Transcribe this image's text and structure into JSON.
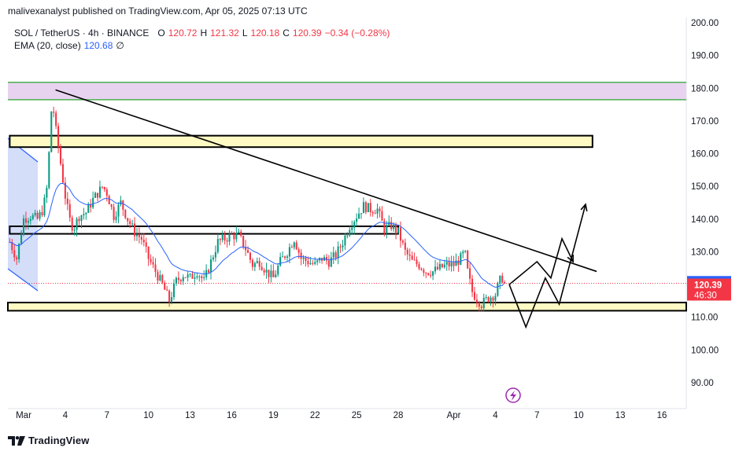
{
  "header": {
    "published_by": "malivexanalyst published on TradingView.com, Apr 05, 2025 07:13 UTC"
  },
  "legend": {
    "symbol": "SOL / TetherUS · 4h · BINANCE",
    "open_label": "O",
    "open": "120.72",
    "high_label": "H",
    "high": "121.32",
    "low_label": "L",
    "low": "120.18",
    "close_label": "C",
    "close": "120.39",
    "change": "−0.34 (−0.28%)",
    "ema_label": "EMA (20, close)",
    "ema_value": "120.68",
    "ema_suffix": "∅"
  },
  "price_badges": {
    "ema": "120.68",
    "price": "120.39",
    "countdown": "46:30"
  },
  "colors": {
    "up": "#089981",
    "down": "#f23645",
    "ema": "#2962ff",
    "resistance_zone_fill": "#e7d3ef",
    "resistance_zone_border": "#4caf50",
    "support_box_fill": "#fff9c4",
    "left_channel_fill": "#c9d6f7",
    "left_channel_border": "#2962ff",
    "price_line": "#f23645"
  },
  "brand": {
    "name": "TradingView",
    "logo_icon": "tradingview-logo-icon"
  },
  "chart_data": {
    "type": "candlestick",
    "symbol": "SOL / TetherUS",
    "timeframe": "4h",
    "exchange": "BINANCE",
    "y_axis": {
      "ticks": [
        "200.00",
        "190.00",
        "180.00",
        "170.00",
        "160.00",
        "150.00",
        "140.00",
        "130.00",
        "120.00",
        "110.00",
        "100.00",
        "90.00"
      ],
      "ylim": [
        83.0,
        204.0
      ]
    },
    "x_axis": {
      "ticks": [
        {
          "label": "Mar",
          "day": 0
        },
        {
          "label": "4",
          "day": 3
        },
        {
          "label": "7",
          "day": 6
        },
        {
          "label": "10",
          "day": 9
        },
        {
          "label": "13",
          "day": 12
        },
        {
          "label": "16",
          "day": 15
        },
        {
          "label": "19",
          "day": 18
        },
        {
          "label": "22",
          "day": 21
        },
        {
          "label": "25",
          "day": 24
        },
        {
          "label": "28",
          "day": 27
        },
        {
          "label": "Apr",
          "day": 31
        },
        {
          "label": "4",
          "day": 34
        },
        {
          "label": "7",
          "day": 37
        },
        {
          "label": "10",
          "day": 40
        },
        {
          "label": "13",
          "day": 43
        },
        {
          "label": "16",
          "day": 46
        }
      ],
      "xlim": [
        -1.0,
        49.0
      ]
    },
    "close_series": [
      {
        "day": -1.0,
        "price": 133
      },
      {
        "day": -0.5,
        "price": 128
      },
      {
        "day": 0.0,
        "price": 140
      },
      {
        "day": 0.5,
        "price": 141
      },
      {
        "day": 1.0,
        "price": 140
      },
      {
        "day": 1.4,
        "price": 143
      },
      {
        "day": 1.7,
        "price": 150
      },
      {
        "day": 1.9,
        "price": 165
      },
      {
        "day": 2.05,
        "price": 177
      },
      {
        "day": 2.3,
        "price": 168
      },
      {
        "day": 2.7,
        "price": 156
      },
      {
        "day": 3.0,
        "price": 147
      },
      {
        "day": 3.3,
        "price": 140
      },
      {
        "day": 3.6,
        "price": 137
      },
      {
        "day": 4.0,
        "price": 141
      },
      {
        "day": 4.5,
        "price": 142
      },
      {
        "day": 5.0,
        "price": 146
      },
      {
        "day": 5.7,
        "price": 150
      },
      {
        "day": 6.0,
        "price": 148
      },
      {
        "day": 6.5,
        "price": 141
      },
      {
        "day": 7.0,
        "price": 145
      },
      {
        "day": 7.5,
        "price": 140
      },
      {
        "day": 8.0,
        "price": 136
      },
      {
        "day": 8.5,
        "price": 134
      },
      {
        "day": 9.0,
        "price": 128
      },
      {
        "day": 9.5,
        "price": 124
      },
      {
        "day": 10.0,
        "price": 120
      },
      {
        "day": 10.5,
        "price": 115
      },
      {
        "day": 11.0,
        "price": 121
      },
      {
        "day": 11.5,
        "price": 123
      },
      {
        "day": 12.0,
        "price": 122
      },
      {
        "day": 12.5,
        "price": 124
      },
      {
        "day": 13.0,
        "price": 121
      },
      {
        "day": 13.5,
        "price": 127
      },
      {
        "day": 14.0,
        "price": 133
      },
      {
        "day": 14.5,
        "price": 134
      },
      {
        "day": 15.0,
        "price": 135
      },
      {
        "day": 15.5,
        "price": 135
      },
      {
        "day": 16.0,
        "price": 131
      },
      {
        "day": 16.5,
        "price": 126
      },
      {
        "day": 17.0,
        "price": 127
      },
      {
        "day": 17.5,
        "price": 124
      },
      {
        "day": 18.0,
        "price": 122
      },
      {
        "day": 18.5,
        "price": 127
      },
      {
        "day": 19.0,
        "price": 130
      },
      {
        "day": 19.5,
        "price": 134
      },
      {
        "day": 20.0,
        "price": 128
      },
      {
        "day": 20.5,
        "price": 127
      },
      {
        "day": 21.0,
        "price": 126
      },
      {
        "day": 21.5,
        "price": 128
      },
      {
        "day": 22.0,
        "price": 127
      },
      {
        "day": 22.5,
        "price": 129
      },
      {
        "day": 23.0,
        "price": 133
      },
      {
        "day": 23.5,
        "price": 138
      },
      {
        "day": 24.0,
        "price": 141
      },
      {
        "day": 24.5,
        "price": 144
      },
      {
        "day": 25.0,
        "price": 143
      },
      {
        "day": 25.5,
        "price": 143
      },
      {
        "day": 26.0,
        "price": 137
      },
      {
        "day": 26.5,
        "price": 138
      },
      {
        "day": 27.0,
        "price": 136
      },
      {
        "day": 27.5,
        "price": 130
      },
      {
        "day": 28.0,
        "price": 127
      },
      {
        "day": 28.5,
        "price": 126
      },
      {
        "day": 29.0,
        "price": 124
      },
      {
        "day": 29.5,
        "price": 124
      },
      {
        "day": 30.0,
        "price": 125
      },
      {
        "day": 30.5,
        "price": 126
      },
      {
        "day": 31.0,
        "price": 126
      },
      {
        "day": 31.5,
        "price": 128
      },
      {
        "day": 31.8,
        "price": 130
      },
      {
        "day": 32.0,
        "price": 124
      },
      {
        "day": 32.3,
        "price": 118
      },
      {
        "day": 32.6,
        "price": 116
      },
      {
        "day": 33.0,
        "price": 114
      },
      {
        "day": 33.5,
        "price": 116
      },
      {
        "day": 34.0,
        "price": 117
      },
      {
        "day": 34.3,
        "price": 121
      },
      {
        "day": 34.5,
        "price": 122
      },
      {
        "day": 34.7,
        "price": 120.39
      }
    ],
    "ema": {
      "name": "EMA (20, close)",
      "last": 120.68
    },
    "last": {
      "open": 120.72,
      "high": 121.32,
      "low": 120.18,
      "close": 120.39,
      "change": -0.34,
      "change_pct": -0.28
    },
    "annotations": {
      "resistance_zone": {
        "from": 176.5,
        "to": 181.8
      },
      "supply_box": {
        "from": 162,
        "to": 165.5,
        "day_start": -1.0,
        "day_end": 41.0
      },
      "mid_boxes": [
        {
          "from": 135.5,
          "to": 137.8,
          "day_start": -1.0,
          "day_end": 27.0
        }
      ],
      "support_zone": {
        "from": 112,
        "to": 114.5
      },
      "trendline": {
        "start": {
          "day": 2.3,
          "price": 179.5
        },
        "end": {
          "day": 41.3,
          "price": 124
        }
      },
      "projection_paths": [
        [
          {
            "day": 35.0,
            "price": 120
          },
          {
            "day": 36.2,
            "price": 107
          },
          {
            "day": 37.6,
            "price": 122
          },
          {
            "day": 38.6,
            "price": 114
          },
          {
            "day": 40.5,
            "price": 144.5
          }
        ],
        [
          {
            "day": 35.0,
            "price": 120
          },
          {
            "day": 37.0,
            "price": 127
          },
          {
            "day": 38.0,
            "price": 122
          },
          {
            "day": 38.8,
            "price": 134
          },
          {
            "day": 39.6,
            "price": 127
          }
        ]
      ]
    }
  }
}
